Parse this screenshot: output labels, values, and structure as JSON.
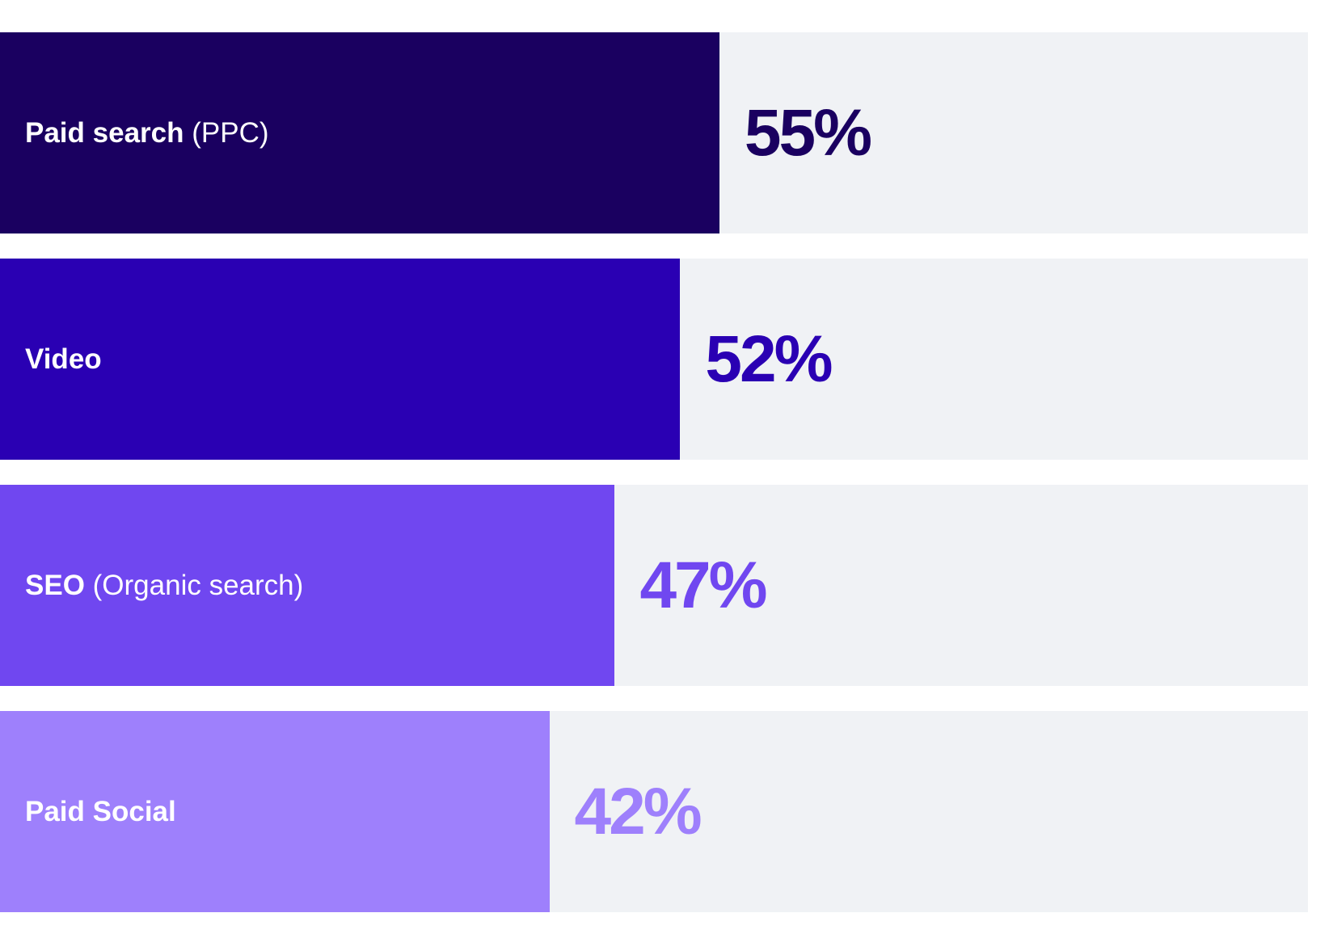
{
  "chart_data": {
    "type": "bar",
    "orientation": "horizontal",
    "xlim": [
      0,
      100
    ],
    "grid": false,
    "categories": [
      {
        "bold": "Paid search",
        "suffix": " (PPC)"
      },
      {
        "bold": "Video",
        "suffix": ""
      },
      {
        "bold": "SEO",
        "suffix": " (Organic search)"
      },
      {
        "bold": "Paid Social",
        "suffix": ""
      }
    ],
    "values": [
      55,
      52,
      47,
      42
    ],
    "value_labels": [
      "55%",
      "52%",
      "47%",
      "42%"
    ],
    "colors": [
      "#1a0060",
      "#2a00b3",
      "#7047f0",
      "#9e80fc"
    ],
    "track_color": "#f0f2f5"
  }
}
